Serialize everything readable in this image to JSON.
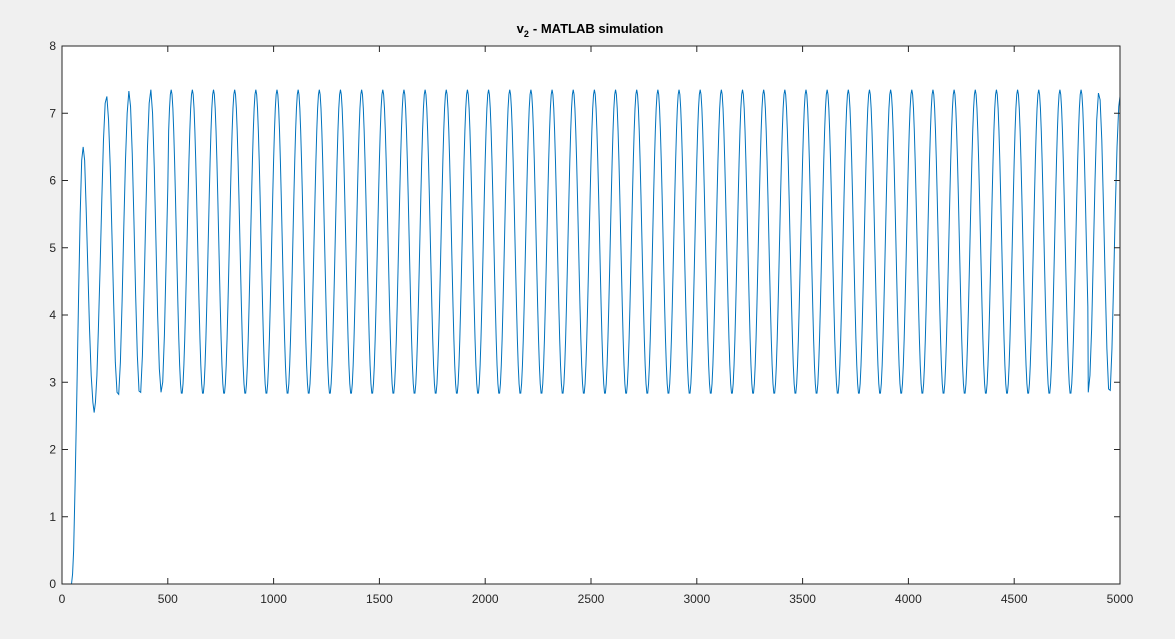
{
  "chart_data": {
    "type": "line",
    "title": "- MATLAB simulation",
    "title_symbol": "v",
    "title_subscript": "2",
    "xlabel": "",
    "ylabel": "",
    "xlim": [
      0,
      5000
    ],
    "ylim": [
      0,
      8
    ],
    "x_ticks": [
      0,
      500,
      1000,
      1500,
      2000,
      2500,
      3000,
      3500,
      4000,
      4500,
      5000
    ],
    "y_ticks": [
      0,
      1,
      2,
      3,
      4,
      5,
      6,
      7,
      8
    ],
    "x_tick_labels": [
      "0",
      "500",
      "1000",
      "1500",
      "2000",
      "2500",
      "3000",
      "3500",
      "4000",
      "4500",
      "5000"
    ],
    "y_tick_labels": [
      "0",
      "1",
      "2",
      "3",
      "4",
      "5",
      "6",
      "7",
      "8"
    ],
    "grid": false,
    "legend": "none",
    "series": [
      {
        "color": "#0072bd",
        "x": [
          0,
          45,
          50,
          55,
          62,
          70,
          78,
          86,
          93,
          100,
          107,
          114,
          122,
          130,
          138,
          146,
          152,
          158,
          165,
          172,
          180,
          188,
          196,
          204,
          212,
          220,
          228,
          236,
          244,
          252,
          260,
          268,
          276,
          284,
          292,
          300,
          308,
          316,
          324,
          332,
          340,
          348,
          356,
          364,
          372,
          380,
          388,
          396,
          404,
          412,
          420,
          428,
          436,
          444,
          452,
          460,
          468,
          476,
          484,
          492,
          500,
          4850,
          4858,
          4866,
          4874,
          4882,
          4890,
          4898,
          4906,
          4914,
          4922,
          4930,
          4938,
          4946,
          4954,
          4962,
          4970,
          4978,
          4986,
          4994,
          5000
        ],
        "y": [
          0,
          0,
          0.15,
          0.5,
          1.5,
          2.8,
          4.2,
          5.5,
          6.3,
          6.5,
          6.3,
          5.6,
          4.7,
          3.8,
          3.1,
          2.7,
          2.55,
          2.7,
          3.1,
          3.8,
          4.7,
          5.7,
          6.6,
          7.15,
          7.25,
          6.9,
          6.2,
          5.2,
          4.2,
          3.3,
          2.85,
          2.82,
          3.3,
          4.2,
          5.3,
          6.3,
          7.0,
          7.33,
          7.1,
          6.4,
          5.4,
          4.3,
          3.4,
          2.87,
          2.85,
          3.4,
          4.4,
          5.5,
          6.5,
          7.15,
          7.35,
          7.0,
          6.2,
          5.1,
          4.0,
          3.2,
          2.85,
          3.0,
          3.7,
          4.8,
          5.9,
          2.85,
          3.1,
          3.8,
          4.9,
          6.0,
          6.9,
          7.3,
          7.2,
          6.6,
          5.6,
          4.5,
          3.5,
          2.9,
          2.88,
          3.5,
          4.5,
          5.6,
          6.5,
          7.1,
          7.25
        ]
      }
    ],
    "steady_state_pattern": {
      "max": 7.35,
      "min": 2.82,
      "period": 100
    }
  }
}
